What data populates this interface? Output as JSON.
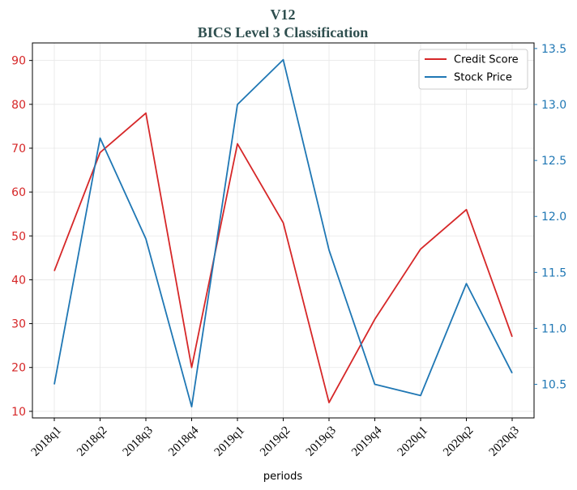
{
  "chart_data": {
    "type": "line",
    "title": "V12",
    "subtitle": "BICS Level 3 Classification",
    "xlabel": "periods",
    "categories": [
      "2018q1",
      "2018q2",
      "2018q3",
      "2018q4",
      "2019q1",
      "2019q2",
      "2019q3",
      "2019q4",
      "2020q1",
      "2020q2",
      "2020q3"
    ],
    "y_left": {
      "ylim": [
        8.5,
        94
      ],
      "ticks": [
        10,
        20,
        30,
        40,
        50,
        60,
        70,
        80,
        90
      ],
      "color": "#d62728"
    },
    "y_right": {
      "ylim": [
        10.2,
        13.55
      ],
      "ticks": [
        10.5,
        11.0,
        11.5,
        12.0,
        12.5,
        13.0,
        13.5
      ],
      "color": "#1f77b4"
    },
    "series": [
      {
        "name": "Credit Score",
        "axis": "left",
        "color": "#d62728",
        "values": [
          42,
          69,
          78,
          20,
          71,
          53,
          12,
          31,
          47,
          56,
          27
        ]
      },
      {
        "name": "Stock Price",
        "axis": "right",
        "color": "#1f77b4",
        "values": [
          10.5,
          12.7,
          11.8,
          10.3,
          13.0,
          13.4,
          11.7,
          10.5,
          10.4,
          11.4,
          10.6
        ]
      }
    ],
    "grid": true,
    "legend": "top-right"
  }
}
